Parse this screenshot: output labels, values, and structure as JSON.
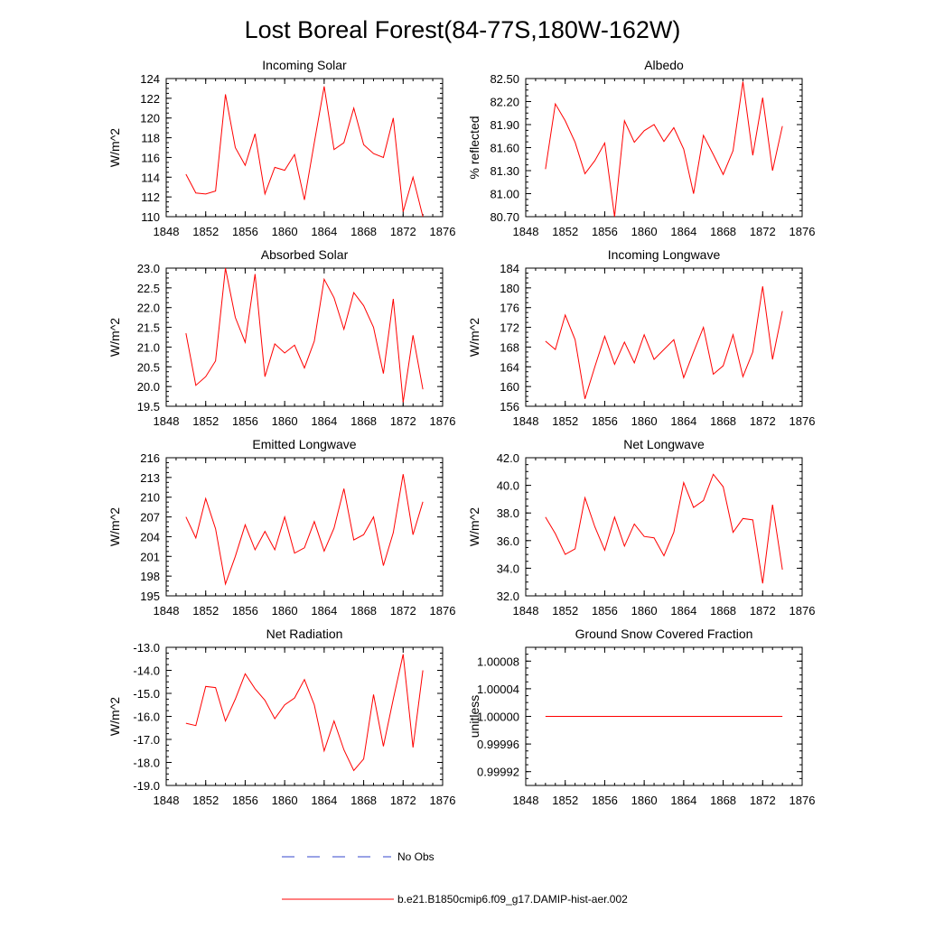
{
  "title": "Lost Boreal Forest(84-77S,180W-162W)",
  "colors": {
    "model": "#ff0000",
    "obs": "#3344cc",
    "axis": "#000000"
  },
  "legend": {
    "obs_label": "No Obs",
    "model_label": "b.e21.B1850cmip6.f09_g17.DAMIP-hist-aer.002"
  },
  "chart_data": [
    {
      "type": "line",
      "title": "Incoming Solar",
      "ylabel": "W/m^2",
      "xlim": [
        1848,
        1876
      ],
      "ylim": [
        110,
        124
      ],
      "xticks": [
        "1848",
        "1852",
        "1856",
        "1860",
        "1864",
        "1868",
        "1872",
        "1876"
      ],
      "yticks": [
        "110",
        "112",
        "114",
        "116",
        "118",
        "120",
        "122",
        "124"
      ],
      "series": [
        {
          "x": [
            1850,
            1851,
            1852,
            1853,
            1854,
            1855,
            1856,
            1857,
            1858,
            1859,
            1860,
            1861,
            1862,
            1863,
            1864,
            1865,
            1866,
            1867,
            1868,
            1869,
            1870,
            1871,
            1872,
            1873,
            1874
          ],
          "y": [
            114.3,
            112.4,
            112.3,
            112.6,
            122.4,
            117.0,
            115.2,
            118.4,
            112.3,
            115.0,
            114.7,
            116.3,
            111.7,
            117.5,
            123.2,
            116.8,
            117.5,
            121.0,
            117.3,
            116.4,
            116.0,
            120.0,
            110.5,
            114.0,
            110.0
          ]
        }
      ]
    },
    {
      "type": "line",
      "title": "Albedo",
      "ylabel": "% reflected",
      "xlim": [
        1848,
        1876
      ],
      "ylim": [
        80.7,
        82.5
      ],
      "xticks": [
        "1848",
        "1852",
        "1856",
        "1860",
        "1864",
        "1868",
        "1872",
        "1876"
      ],
      "yticks": [
        "80.70",
        "81.00",
        "81.30",
        "81.60",
        "81.90",
        "82.20",
        "82.50"
      ],
      "series": [
        {
          "x": [
            1850,
            1851,
            1852,
            1853,
            1854,
            1855,
            1856,
            1857,
            1858,
            1859,
            1860,
            1861,
            1862,
            1863,
            1864,
            1865,
            1866,
            1867,
            1868,
            1869,
            1870,
            1871,
            1872,
            1873,
            1874
          ],
          "y": [
            81.32,
            82.17,
            81.95,
            81.67,
            81.26,
            81.43,
            81.66,
            80.7,
            81.95,
            81.67,
            81.82,
            81.9,
            81.68,
            81.86,
            81.58,
            81.0,
            81.76,
            81.51,
            81.25,
            81.56,
            82.46,
            81.5,
            82.25,
            81.3,
            81.88
          ]
        }
      ]
    },
    {
      "type": "line",
      "title": "Absorbed Solar",
      "ylabel": "W/m^2",
      "xlim": [
        1848,
        1876
      ],
      "ylim": [
        19.5,
        23.0
      ],
      "xticks": [
        "1848",
        "1852",
        "1856",
        "1860",
        "1864",
        "1868",
        "1872",
        "1876"
      ],
      "yticks": [
        "19.5",
        "20.0",
        "20.5",
        "21.0",
        "21.5",
        "22.0",
        "22.5",
        "23.0"
      ],
      "series": [
        {
          "x": [
            1850,
            1851,
            1852,
            1853,
            1854,
            1855,
            1856,
            1857,
            1858,
            1859,
            1860,
            1861,
            1862,
            1863,
            1864,
            1865,
            1866,
            1867,
            1868,
            1869,
            1870,
            1871,
            1872,
            1873,
            1874
          ],
          "y": [
            21.35,
            20.03,
            20.25,
            20.65,
            23.0,
            21.75,
            21.12,
            22.85,
            20.25,
            21.08,
            20.85,
            21.05,
            20.47,
            21.15,
            22.72,
            22.25,
            21.45,
            22.38,
            22.05,
            21.5,
            20.33,
            22.22,
            19.6,
            21.3,
            19.93
          ]
        }
      ]
    },
    {
      "type": "line",
      "title": "Incoming Longwave",
      "ylabel": "W/m^2",
      "xlim": [
        1848,
        1876
      ],
      "ylim": [
        156,
        184
      ],
      "xticks": [
        "1848",
        "1852",
        "1856",
        "1860",
        "1864",
        "1868",
        "1872",
        "1876"
      ],
      "yticks": [
        "156",
        "160",
        "164",
        "168",
        "172",
        "176",
        "180",
        "184"
      ],
      "series": [
        {
          "x": [
            1850,
            1851,
            1852,
            1853,
            1854,
            1855,
            1856,
            1857,
            1858,
            1859,
            1860,
            1861,
            1862,
            1863,
            1864,
            1865,
            1866,
            1867,
            1868,
            1869,
            1870,
            1871,
            1872,
            1873,
            1874
          ],
          "y": [
            169.2,
            167.5,
            174.5,
            169.5,
            157.5,
            164.0,
            170.2,
            164.5,
            169.0,
            164.8,
            170.5,
            165.5,
            167.5,
            169.5,
            161.8,
            167.0,
            172.0,
            162.5,
            164.2,
            170.5,
            162.0,
            167.0,
            180.3,
            165.5,
            175.3
          ]
        }
      ]
    },
    {
      "type": "line",
      "title": "Emitted Longwave",
      "ylabel": "W/m^2",
      "xlim": [
        1848,
        1876
      ],
      "ylim": [
        195,
        216
      ],
      "xticks": [
        "1848",
        "1852",
        "1856",
        "1860",
        "1864",
        "1868",
        "1872",
        "1876"
      ],
      "yticks": [
        "195",
        "198",
        "201",
        "204",
        "207",
        "210",
        "213",
        "216"
      ],
      "series": [
        {
          "x": [
            1850,
            1851,
            1852,
            1853,
            1854,
            1855,
            1856,
            1857,
            1858,
            1859,
            1860,
            1861,
            1862,
            1863,
            1864,
            1865,
            1866,
            1867,
            1868,
            1869,
            1870,
            1871,
            1872,
            1873,
            1874
          ],
          "y": [
            207.0,
            203.8,
            209.8,
            205.2,
            196.8,
            201.0,
            205.8,
            202.0,
            204.8,
            202.0,
            207.0,
            201.5,
            202.3,
            206.3,
            201.8,
            205.3,
            211.3,
            203.5,
            204.3,
            207.0,
            199.6,
            204.6,
            213.5,
            204.3,
            209.3
          ]
        }
      ]
    },
    {
      "type": "line",
      "title": "Net Longwave",
      "ylabel": "W/m^2",
      "xlim": [
        1848,
        1876
      ],
      "ylim": [
        32.0,
        42.0
      ],
      "xticks": [
        "1848",
        "1852",
        "1856",
        "1860",
        "1864",
        "1868",
        "1872",
        "1876"
      ],
      "yticks": [
        "32.0",
        "34.0",
        "36.0",
        "38.0",
        "40.0",
        "42.0"
      ],
      "series": [
        {
          "x": [
            1850,
            1851,
            1852,
            1853,
            1854,
            1855,
            1856,
            1857,
            1858,
            1859,
            1860,
            1861,
            1862,
            1863,
            1864,
            1865,
            1866,
            1867,
            1868,
            1869,
            1870,
            1871,
            1872,
            1873,
            1874
          ],
          "y": [
            37.7,
            36.5,
            35.0,
            35.4,
            39.1,
            37.0,
            35.3,
            37.7,
            35.6,
            37.2,
            36.3,
            36.2,
            34.9,
            36.6,
            40.2,
            38.4,
            38.9,
            40.8,
            39.9,
            36.6,
            37.6,
            37.5,
            32.9,
            38.6,
            33.9
          ]
        }
      ]
    },
    {
      "type": "line",
      "title": "Net Radiation",
      "ylabel": "W/m^2",
      "xlim": [
        1848,
        1876
      ],
      "ylim": [
        -19.0,
        -13.0
      ],
      "xticks": [
        "1848",
        "1852",
        "1856",
        "1860",
        "1864",
        "1868",
        "1872",
        "1876"
      ],
      "yticks": [
        "-19.0",
        "-18.0",
        "-17.0",
        "-16.0",
        "-15.0",
        "-14.0",
        "-13.0"
      ],
      "series": [
        {
          "x": [
            1850,
            1851,
            1852,
            1853,
            1854,
            1855,
            1856,
            1857,
            1858,
            1859,
            1860,
            1861,
            1862,
            1863,
            1864,
            1865,
            1866,
            1867,
            1868,
            1869,
            1870,
            1871,
            1872,
            1873,
            1874
          ],
          "y": [
            -16.3,
            -16.4,
            -14.7,
            -14.75,
            -16.2,
            -15.25,
            -14.15,
            -14.8,
            -15.3,
            -16.1,
            -15.5,
            -15.2,
            -14.4,
            -15.5,
            -17.5,
            -16.2,
            -17.45,
            -18.35,
            -17.85,
            -15.05,
            -17.3,
            -15.25,
            -13.3,
            -17.35,
            -14.0
          ]
        }
      ]
    },
    {
      "type": "line",
      "title": "Ground Snow Covered Fraction",
      "ylabel": "unitless",
      "xlim": [
        1848,
        1876
      ],
      "ylim": [
        0.9999,
        1.0001
      ],
      "xticks": [
        "1848",
        "1852",
        "1856",
        "1860",
        "1864",
        "1868",
        "1872",
        "1876"
      ],
      "yticks": [
        "0.99992",
        "0.99996",
        "1.00000",
        "1.00004",
        "1.00008"
      ],
      "series": [
        {
          "x": [
            1850,
            1874
          ],
          "y": [
            1.0,
            1.0
          ]
        }
      ]
    }
  ]
}
